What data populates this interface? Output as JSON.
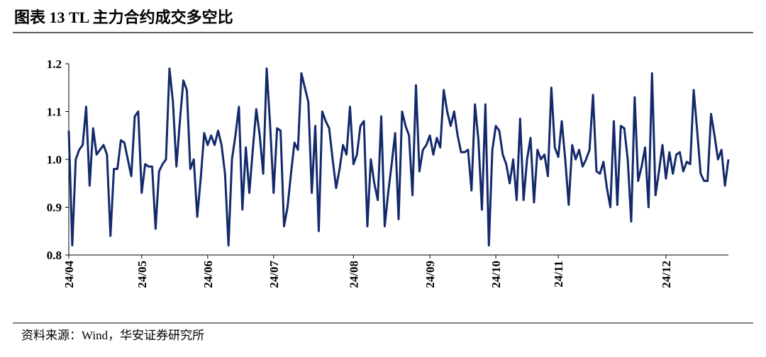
{
  "chart_data": {
    "type": "line",
    "title": "图表 13 TL 主力合约成交多空比",
    "source": "资料来源：Wind，华安证券研究所",
    "categories": [
      "24/04",
      null,
      null,
      null,
      null,
      null,
      null,
      null,
      null,
      null,
      null,
      null,
      null,
      null,
      null,
      null,
      null,
      null,
      null,
      null,
      null,
      "24/05",
      null,
      null,
      null,
      null,
      null,
      null,
      null,
      null,
      null,
      null,
      null,
      null,
      null,
      null,
      null,
      null,
      null,
      null,
      "24/06",
      null,
      null,
      null,
      null,
      null,
      null,
      null,
      null,
      null,
      null,
      null,
      null,
      null,
      null,
      null,
      null,
      null,
      null,
      "24/07",
      null,
      null,
      null,
      null,
      null,
      null,
      null,
      null,
      null,
      null,
      null,
      null,
      null,
      null,
      null,
      null,
      null,
      null,
      null,
      null,
      null,
      null,
      "24/08",
      null,
      null,
      null,
      null,
      null,
      null,
      null,
      null,
      null,
      null,
      null,
      null,
      null,
      null,
      null,
      null,
      null,
      null,
      null,
      null,
      null,
      "24/09",
      null,
      null,
      null,
      null,
      null,
      null,
      null,
      null,
      null,
      null,
      null,
      null,
      null,
      null,
      null,
      null,
      null,
      null,
      "24/10",
      null,
      null,
      null,
      null,
      null,
      null,
      null,
      null,
      null,
      null,
      null,
      null,
      null,
      null,
      null,
      null,
      null,
      "24/11",
      null,
      null,
      null,
      null,
      null,
      null,
      null,
      null,
      null,
      null,
      null,
      null,
      null,
      null,
      null,
      null,
      null,
      null,
      null,
      null,
      null,
      null,
      null,
      null,
      null,
      null,
      null,
      null,
      null,
      null,
      "24/12",
      null,
      null,
      null,
      null,
      null,
      null,
      null,
      null,
      null,
      null,
      null,
      null,
      null,
      null,
      null,
      null,
      null,
      null
    ],
    "series": [
      {
        "name": "TL",
        "color": "#13296b",
        "values": [
          1.06,
          0.82,
          1.0,
          1.02,
          1.03,
          1.11,
          0.945,
          1.065,
          1.01,
          1.02,
          1.03,
          1.01,
          0.84,
          0.98,
          0.98,
          1.04,
          1.035,
          1.0,
          0.965,
          1.09,
          1.1,
          0.93,
          0.99,
          0.985,
          0.985,
          0.855,
          0.975,
          0.99,
          1.0,
          1.19,
          1.12,
          0.985,
          1.08,
          1.165,
          1.145,
          0.98,
          1.0,
          0.88,
          0.96,
          1.055,
          1.03,
          1.05,
          1.03,
          1.06,
          1.03,
          0.97,
          0.82,
          1.0,
          1.05,
          1.11,
          0.895,
          1.025,
          0.93,
          1.02,
          1.105,
          1.05,
          0.97,
          1.19,
          1.07,
          0.93,
          1.065,
          1.06,
          0.86,
          0.9,
          0.97,
          1.035,
          1.02,
          1.18,
          1.15,
          1.12,
          0.93,
          1.07,
          0.85,
          1.1,
          1.08,
          1.065,
          1.0,
          0.94,
          0.98,
          1.03,
          1.01,
          1.11,
          0.99,
          1.01,
          1.07,
          1.08,
          0.86,
          1.0,
          0.95,
          0.915,
          1.09,
          0.86,
          0.93,
          0.99,
          1.055,
          0.875,
          1.1,
          1.07,
          1.05,
          0.925,
          1.155,
          0.975,
          1.02,
          1.03,
          1.05,
          1.01,
          1.045,
          1.025,
          1.145,
          1.1,
          1.07,
          1.1,
          1.05,
          1.015,
          1.015,
          1.02,
          0.935,
          1.115,
          1.04,
          0.895,
          1.115,
          0.82,
          1.02,
          1.07,
          1.06,
          1.01,
          0.99,
          0.95,
          1.0,
          0.915,
          1.085,
          0.915,
          1.0,
          1.045,
          0.91,
          1.02,
          1.0,
          1.01,
          0.965,
          1.15,
          1.025,
          1.005,
          1.08,
          1.0,
          0.905,
          1.03,
          1.0,
          1.02,
          0.985,
          1.0,
          1.02,
          1.135,
          0.975,
          0.97,
          0.995,
          0.94,
          0.9,
          1.08,
          0.905,
          1.07,
          1.065,
          1.0,
          0.87,
          1.13,
          0.955,
          0.985,
          1.025,
          0.9,
          1.18,
          0.925,
          0.975,
          1.03,
          0.96,
          1.015,
          0.97,
          1.01,
          1.015,
          0.975,
          0.995,
          0.99,
          1.145,
          1.06,
          0.97,
          0.955,
          0.955,
          1.095,
          1.05,
          1.0,
          1.02,
          0.945,
          1.0
        ]
      }
    ],
    "ylim": [
      0.8,
      1.2
    ],
    "yticks": [
      0.8,
      0.9,
      {
        "value": 1,
        "label": "1.0"
      },
      1.1,
      1.2
    ],
    "grid": false
  }
}
